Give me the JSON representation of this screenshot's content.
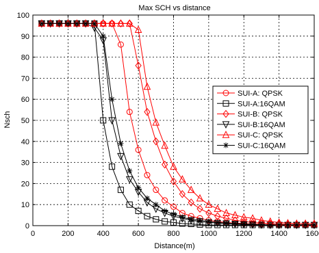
{
  "chart_data": {
    "type": "line",
    "title": "Max SCH vs distance",
    "xlabel": "Distance(m)",
    "ylabel": "Nsch",
    "xlim": [
      0,
      1600
    ],
    "ylim": [
      0,
      100
    ],
    "xticks": [
      0,
      200,
      400,
      600,
      800,
      1000,
      1200,
      1400,
      1600
    ],
    "yticks": [
      0,
      10,
      20,
      30,
      40,
      50,
      60,
      70,
      80,
      90,
      100
    ],
    "xtick_labels": [
      "0",
      "200",
      "400",
      "600",
      "800",
      "1000",
      "1200",
      "1400",
      "1600"
    ],
    "ytick_labels": [
      "0",
      "10",
      "20",
      "30",
      "40",
      "50",
      "60",
      "70",
      "80",
      "90",
      "100"
    ],
    "grid": true,
    "legend_position": "right",
    "x": [
      50,
      100,
      150,
      200,
      250,
      300,
      350,
      400,
      450,
      500,
      550,
      600,
      650,
      700,
      750,
      800,
      850,
      900,
      950,
      1000,
      1050,
      1100,
      1150,
      1200,
      1250,
      1300,
      1350,
      1400,
      1450,
      1500,
      1550,
      1600
    ],
    "series": [
      {
        "name": "SUI-A: QPSK",
        "color": "#ff0000",
        "marker": "circle",
        "values": [
          96,
          96,
          96,
          96,
          96,
          96,
          96,
          96,
          96,
          86,
          54,
          36,
          24,
          17,
          12,
          9,
          6,
          4.5,
          3.5,
          2.5,
          2,
          1.5,
          1.2,
          1,
          0.8,
          0.6,
          0.5,
          0.4,
          0.3,
          0.3,
          0.3,
          0.3
        ]
      },
      {
        "name": "SUI-A:16QAM",
        "color": "#000000",
        "marker": "square",
        "values": [
          96,
          96,
          96,
          96,
          96,
          96,
          96,
          50,
          28,
          17,
          10,
          7,
          4.5,
          3,
          2,
          1.5,
          1,
          0.8,
          0.5,
          0.3,
          0.3,
          0.3,
          0.3,
          0.3,
          0.3,
          0.3,
          0.3,
          0.3,
          0.3,
          0.3,
          0.3,
          0.3
        ]
      },
      {
        "name": "SUI-B: QPSK",
        "color": "#ff0000",
        "marker": "diamond",
        "values": [
          96,
          96,
          96,
          96,
          96,
          96,
          96,
          96,
          96,
          96,
          96,
          76,
          54,
          40,
          29,
          21,
          15,
          11,
          8,
          6,
          4.5,
          3.5,
          2.5,
          2,
          1.5,
          1.2,
          1,
          0.8,
          0.6,
          0.5,
          0.5,
          0.5
        ]
      },
      {
        "name": "SUI-B:16QAM",
        "color": "#000000",
        "marker": "triangle-down",
        "values": [
          96,
          96,
          96,
          96,
          96,
          96,
          94,
          88,
          50,
          33,
          22,
          16,
          11,
          8,
          6,
          4.5,
          3.5,
          2.5,
          2,
          1.5,
          1.2,
          1,
          0.8,
          0.6,
          0.5,
          0.4,
          0.3,
          0.3,
          0.3,
          0.3,
          0.3,
          0.3
        ]
      },
      {
        "name": "SUI-C: QPSK",
        "color": "#ff0000",
        "marker": "triangle-up",
        "values": [
          96,
          96,
          96,
          96,
          96,
          96,
          96,
          96,
          96,
          96,
          96,
          93,
          66,
          49,
          38,
          28,
          22,
          17,
          13,
          10,
          8,
          6,
          5,
          4,
          3.5,
          2.5,
          2,
          1.5,
          1.2,
          1,
          1,
          1
        ]
      },
      {
        "name": "SUI-C:16QAM",
        "color": "#000000",
        "marker": "star",
        "values": [
          96,
          96,
          96,
          96,
          96,
          96,
          96,
          90,
          60,
          39,
          26,
          18,
          13,
          10,
          7,
          5.5,
          4,
          3,
          2.5,
          2,
          1.5,
          1.2,
          1,
          0.8,
          0.6,
          0.5,
          0.4,
          0.4,
          0.4,
          0.4,
          0.4,
          0.4
        ]
      }
    ]
  }
}
